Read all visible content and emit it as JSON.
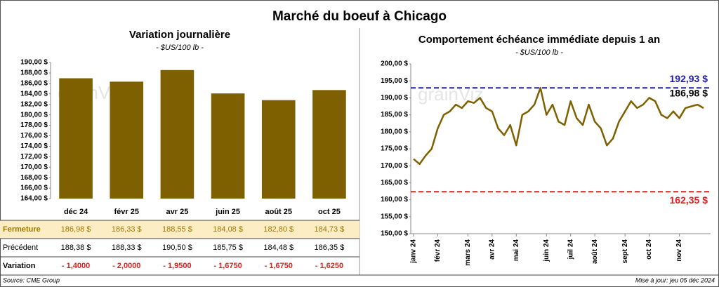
{
  "title": "Marché du boeuf à Chicago",
  "source": "Source: CME Group",
  "updated": "Mise à jour: jeu 05 déc 2024",
  "watermark": "grainViz",
  "chart_data": [
    {
      "type": "bar",
      "title": "Variation journalière",
      "subtitle": "- $US/100 lb -",
      "categories": [
        "déc 24",
        "févr 25",
        "avr 25",
        "juin 25",
        "août 25",
        "oct 25"
      ],
      "values": [
        186.98,
        186.33,
        188.55,
        184.08,
        182.8,
        184.73
      ],
      "value_labels": [
        "186,98 $",
        "186,33 $",
        "188,55 $",
        "184,08 $",
        "182,80 $",
        "184,73 $"
      ],
      "color": "#7f6000",
      "ylim": [
        164,
        190
      ],
      "yticks": [
        {
          "value": 164,
          "label": "164,00 $"
        },
        {
          "value": 166,
          "label": "166,00 $"
        },
        {
          "value": 168,
          "label": "168,00 $"
        },
        {
          "value": 170,
          "label": "170,00 $"
        },
        {
          "value": 172,
          "label": "172,00 $"
        },
        {
          "value": 174,
          "label": "174,00 $"
        },
        {
          "value": 176,
          "label": "176,00 $"
        },
        {
          "value": 178,
          "label": "178,00 $"
        },
        {
          "value": 180,
          "label": "180,00 $"
        },
        {
          "value": 182,
          "label": "182,00 $"
        },
        {
          "value": 184,
          "label": "184,00 $"
        },
        {
          "value": 186,
          "label": "186,00 $"
        },
        {
          "value": 188,
          "label": "188,00 $"
        },
        {
          "value": 190,
          "label": "190,00 $"
        }
      ]
    },
    {
      "type": "line",
      "title": "Comportement échéance immédiate depuis 1 an",
      "subtitle": "- $US/100 lb -",
      "categories": [
        "janv 24",
        null,
        null,
        null,
        "févr 24",
        null,
        null,
        null,
        null,
        "mars 24",
        null,
        null,
        null,
        "avr 24",
        null,
        null,
        null,
        "mai 24",
        null,
        null,
        null,
        null,
        "juin 24",
        null,
        null,
        null,
        "juil 24",
        null,
        null,
        null,
        "août 24",
        null,
        null,
        null,
        null,
        "sept 24",
        null,
        null,
        null,
        "oct 24",
        null,
        null,
        null,
        null,
        "nov 24",
        null,
        null,
        null,
        null
      ],
      "values": [
        172,
        170.5,
        173,
        175,
        181,
        185,
        186,
        188,
        187,
        189,
        188.5,
        190,
        187,
        186,
        181,
        179,
        182,
        176,
        185,
        186,
        188,
        192.93,
        185,
        188,
        183,
        182,
        189,
        184,
        182,
        188,
        183,
        181,
        176,
        178,
        183,
        186,
        189,
        187,
        188,
        190,
        189,
        185,
        184,
        186,
        184,
        187,
        187.5,
        188,
        186.98
      ],
      "end_label": "186,98 $",
      "color": "#7f6000",
      "ylim": [
        150,
        200
      ],
      "yticks": [
        {
          "value": 150,
          "label": "150,00 $"
        },
        {
          "value": 155,
          "label": "155,00 $"
        },
        {
          "value": 160,
          "label": "160,00 $"
        },
        {
          "value": 165,
          "label": "165,00 $"
        },
        {
          "value": 170,
          "label": "170,00 $"
        },
        {
          "value": 175,
          "label": "175,00 $"
        },
        {
          "value": 180,
          "label": "180,00 $"
        },
        {
          "value": 185,
          "label": "185,00 $"
        },
        {
          "value": 190,
          "label": "190,00 $"
        },
        {
          "value": 195,
          "label": "195,00 $"
        },
        {
          "value": 200,
          "label": "200,00 $"
        }
      ],
      "ref_lines": [
        {
          "value": 192.93,
          "label": "192,93 $",
          "color": "#1f1fa8"
        },
        {
          "value": 162.35,
          "label": "162,35 $",
          "color": "#e02020"
        }
      ]
    }
  ],
  "table": {
    "rows": [
      {
        "label": "Fermeture"
      },
      {
        "label": "Précédent",
        "cells": [
          "188,38 $",
          "188,33 $",
          "190,50 $",
          "185,75 $",
          "184,48 $",
          "186,35 $"
        ]
      },
      {
        "label": "Variation",
        "cells": [
          "- 1,4000",
          "- 2,0000",
          "- 1,9500",
          "- 1,6750",
          "- 1,6750",
          "- 1,6250"
        ]
      }
    ]
  }
}
